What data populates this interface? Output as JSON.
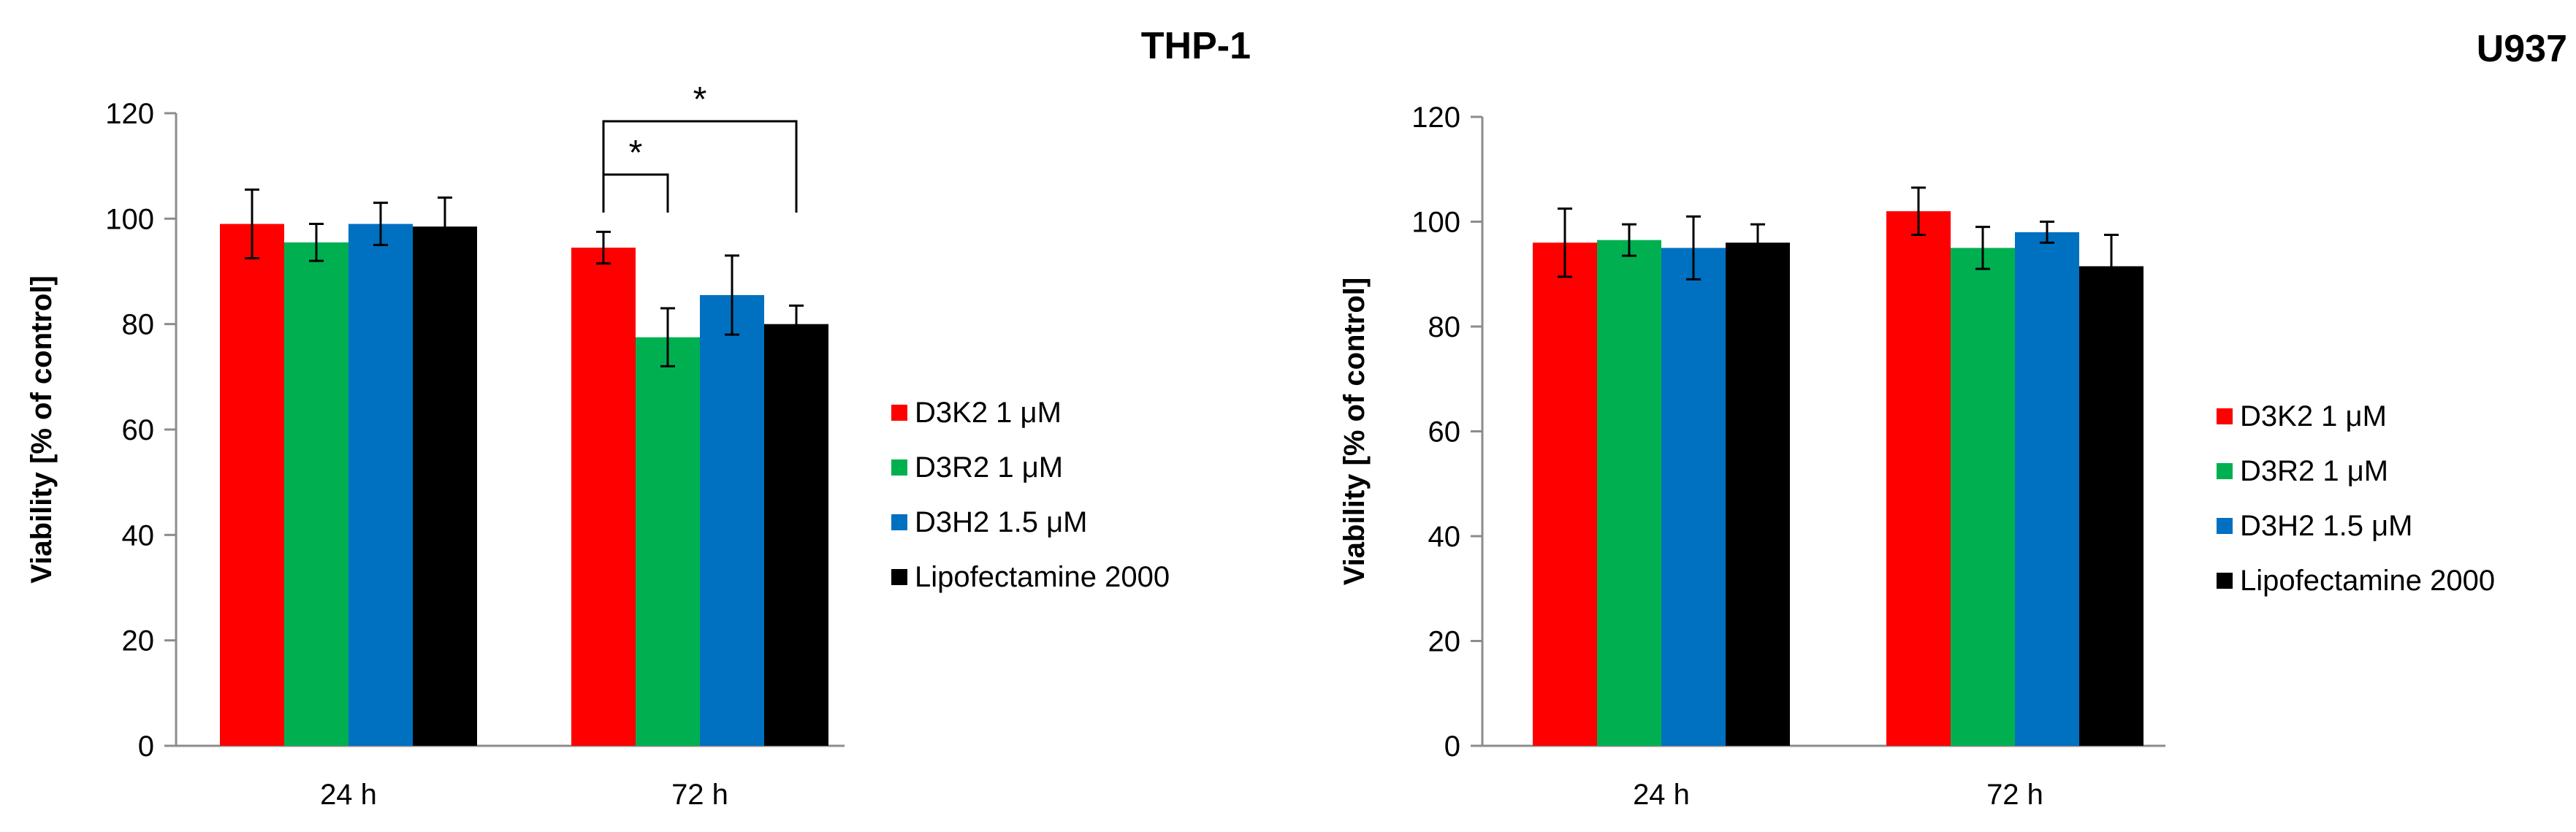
{
  "chart_data": [
    {
      "type": "bar",
      "title": "THP-1",
      "xlabel": "",
      "ylabel": "Viability [% of control]",
      "ylim": [
        0,
        120
      ],
      "yticks": [
        "0",
        "20",
        "40",
        "60",
        "80",
        "100",
        "120"
      ],
      "categories": [
        "24 h",
        "72 h"
      ],
      "series": [
        {
          "name": "D3K2 1 μM",
          "color": "#ff0000",
          "values": [
            99,
            94.5
          ],
          "errors": [
            6.5,
            3
          ]
        },
        {
          "name": "D3R2 1 μM",
          "color": "#00b050",
          "values": [
            95.5,
            77.5
          ],
          "errors": [
            3.5,
            5.5
          ]
        },
        {
          "name": "D3H2 1.5 μM",
          "color": "#0070c0",
          "values": [
            99,
            85.5
          ],
          "errors": [
            4,
            7.5
          ]
        },
        {
          "name": "Lipofectamine 2000",
          "color": "#000000",
          "values": [
            98.5,
            80
          ],
          "errors": [
            5.5,
            3.5
          ]
        }
      ],
      "annotations": [
        {
          "label": "*",
          "category": "72 h",
          "from_series": 0,
          "to_series": 1
        },
        {
          "label": "*",
          "category": "72 h",
          "from_series": 0,
          "to_series": 3
        }
      ],
      "legend": "right"
    },
    {
      "type": "bar",
      "title": "U937",
      "xlabel": "",
      "ylabel": "Viability [% of control]",
      "ylim": [
        0,
        120
      ],
      "yticks": [
        "0",
        "20",
        "40",
        "60",
        "80",
        "100",
        "120"
      ],
      "categories": [
        "24 h",
        "72 h"
      ],
      "series": [
        {
          "name": "D3K2 1 μM",
          "color": "#ff0000",
          "values": [
            96,
            102
          ],
          "errors": [
            6.5,
            4.5
          ]
        },
        {
          "name": "D3R2 1 μM",
          "color": "#00b050",
          "values": [
            96.5,
            95
          ],
          "errors": [
            3,
            4
          ]
        },
        {
          "name": "D3H2 1.5 μM",
          "color": "#0070c0",
          "values": [
            95,
            98
          ],
          "errors": [
            6,
            2
          ]
        },
        {
          "name": "Lipofectamine 2000",
          "color": "#000000",
          "values": [
            96,
            91.5
          ],
          "errors": [
            3.5,
            6
          ]
        }
      ],
      "annotations": [],
      "legend": "right"
    }
  ]
}
